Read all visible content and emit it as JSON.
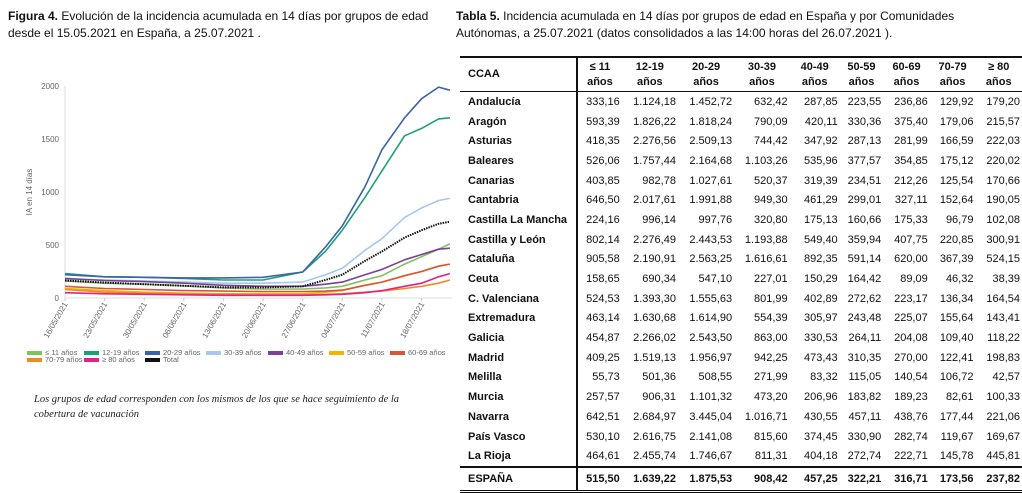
{
  "figure": {
    "label": "Figura 4.",
    "title": "Evolución de la incidencia acumulada en 14 días por grupos de edad desde el 15.05.2021 en España, a 25.07.2021 .",
    "note": "Los grupos de edad corresponden con los mismos de los que se hace seguimiento de la cobertura de vacunación"
  },
  "chart_data": {
    "type": "line",
    "title": "Evolución de la incidencia acumulada en 14 días por grupos de edad",
    "xlabel": "",
    "ylabel": "IA en 14 días",
    "ylim": [
      0,
      2000
    ],
    "yticks": [
      "0",
      "500",
      "1000",
      "1500",
      "2000"
    ],
    "xticks": [
      "16/05/2021",
      "23/05/2021",
      "30/05/2021",
      "06/06/2021",
      "13/06/2021",
      "20/06/2021",
      "27/06/2021",
      "04/07/2021",
      "11/07/2021",
      "18/07/2021"
    ],
    "x_days_since_16_05": [
      0,
      7,
      14,
      21,
      28,
      35,
      42,
      46,
      49,
      53,
      56,
      60,
      63,
      66,
      68
    ],
    "legend_position": "bottom",
    "series": [
      {
        "name": "≤ 11 años",
        "color": "#7dc35b",
        "values": [
          160,
          140,
          130,
          115,
          95,
          85,
          85,
          95,
          110,
          170,
          210,
          320,
          390,
          460,
          510
        ]
      },
      {
        "name": "12-19 años",
        "color": "#1ba07a",
        "values": [
          230,
          200,
          195,
          185,
          170,
          170,
          245,
          440,
          640,
          950,
          1200,
          1530,
          1600,
          1690,
          1700
        ]
      },
      {
        "name": "20-29 años",
        "color": "#3b63a8",
        "values": [
          220,
          200,
          195,
          190,
          190,
          195,
          245,
          480,
          680,
          1050,
          1400,
          1700,
          1880,
          1990,
          1960
        ]
      },
      {
        "name": "30-39 años",
        "color": "#a6c8f0",
        "values": [
          180,
          170,
          160,
          150,
          140,
          140,
          150,
          220,
          280,
          450,
          560,
          760,
          850,
          920,
          940
        ]
      },
      {
        "name": "40-49 años",
        "color": "#7b3f98",
        "values": [
          185,
          165,
          155,
          140,
          120,
          110,
          110,
          130,
          150,
          220,
          270,
          360,
          410,
          460,
          470
        ]
      },
      {
        "name": "50-59 años",
        "color": "#f2b400",
        "values": [
          90,
          70,
          55,
          45,
          40,
          40,
          40,
          55,
          70,
          120,
          150,
          210,
          250,
          300,
          320
        ]
      },
      {
        "name": "60-69 años",
        "color": "#d8553b",
        "values": [
          110,
          90,
          80,
          70,
          65,
          60,
          60,
          65,
          75,
          120,
          150,
          210,
          250,
          300,
          320
        ]
      },
      {
        "name": "70-79 años",
        "color": "#f08a24",
        "values": [
          80,
          55,
          45,
          40,
          35,
          30,
          30,
          35,
          40,
          55,
          65,
          90,
          110,
          140,
          170
        ]
      },
      {
        "name": "≥ 80 años",
        "color": "#e0218a",
        "values": [
          50,
          40,
          35,
          30,
          25,
          25,
          25,
          30,
          35,
          50,
          70,
          110,
          140,
          200,
          230
        ]
      },
      {
        "name": "Total",
        "color": "#111111",
        "dotted": true,
        "values": [
          165,
          145,
          130,
          115,
          100,
          100,
          110,
          170,
          220,
          350,
          440,
          570,
          640,
          700,
          720
        ]
      }
    ]
  },
  "table": {
    "label": "Tabla 5.",
    "title": "Incidencia acumulada en 14 días por grupos de edad en España y por Comunidades Autónomas, a 25.07.2021  (datos consolidados a las 14:00 horas del 26.07.2021 ).",
    "headers": [
      "CCAA",
      "≤ 11",
      "12-19",
      "20-29",
      "30-39",
      "40-49",
      "50-59",
      "60-69",
      "70-79",
      "≥ 80"
    ],
    "subheader": "años",
    "rows": [
      [
        "Andalucía",
        "333,16",
        "1.124,18",
        "1.452,72",
        "632,42",
        "287,85",
        "223,55",
        "236,86",
        "129,92",
        "179,20"
      ],
      [
        "Aragón",
        "593,39",
        "1.826,22",
        "1.818,24",
        "790,09",
        "420,11",
        "330,36",
        "375,40",
        "179,06",
        "215,57"
      ],
      [
        "Asturias",
        "418,35",
        "2.276,56",
        "2.509,13",
        "744,42",
        "347,92",
        "287,13",
        "281,99",
        "166,59",
        "222,03"
      ],
      [
        "Baleares",
        "526,06",
        "1.757,44",
        "2.164,68",
        "1.103,26",
        "535,96",
        "377,57",
        "354,85",
        "175,12",
        "220,02"
      ],
      [
        "Canarias",
        "403,85",
        "982,78",
        "1.027,61",
        "520,37",
        "319,39",
        "234,51",
        "212,26",
        "125,54",
        "170,66"
      ],
      [
        "Cantabria",
        "646,50",
        "2.017,61",
        "1.991,88",
        "949,30",
        "461,29",
        "299,01",
        "327,11",
        "152,64",
        "190,05"
      ],
      [
        "Castilla La Mancha",
        "224,16",
        "996,14",
        "997,76",
        "320,80",
        "175,13",
        "160,66",
        "175,33",
        "96,79",
        "102,08"
      ],
      [
        "Castilla y León",
        "802,14",
        "2.276,49",
        "2.443,53",
        "1.193,88",
        "549,40",
        "359,94",
        "407,75",
        "220,85",
        "300,91"
      ],
      [
        "Cataluña",
        "905,58",
        "2.190,91",
        "2.563,25",
        "1.616,61",
        "892,35",
        "591,14",
        "620,00",
        "367,39",
        "524,15"
      ],
      [
        "Ceuta",
        "158,65",
        "690,34",
        "547,10",
        "227,01",
        "150,29",
        "164,42",
        "89,09",
        "46,32",
        "38,39"
      ],
      [
        "C. Valenciana",
        "524,53",
        "1.393,30",
        "1.555,63",
        "801,99",
        "402,89",
        "272,62",
        "223,17",
        "136,34",
        "164,54"
      ],
      [
        "Extremadura",
        "463,14",
        "1.630,68",
        "1.614,90",
        "554,39",
        "305,97",
        "243,48",
        "225,07",
        "155,64",
        "143,41"
      ],
      [
        "Galicia",
        "454,87",
        "2.266,02",
        "2.543,50",
        "863,00",
        "330,53",
        "264,11",
        "204,08",
        "109,40",
        "118,22"
      ],
      [
        "Madrid",
        "409,25",
        "1.519,13",
        "1.956,97",
        "942,25",
        "473,43",
        "310,35",
        "270,00",
        "122,41",
        "198,83"
      ],
      [
        "Melilla",
        "55,73",
        "501,36",
        "508,55",
        "271,99",
        "83,32",
        "115,05",
        "140,54",
        "106,72",
        "42,57"
      ],
      [
        "Murcia",
        "257,57",
        "906,31",
        "1.101,32",
        "473,20",
        "206,96",
        "183,82",
        "189,23",
        "82,61",
        "100,33"
      ],
      [
        "Navarra",
        "642,51",
        "2.684,97",
        "3.445,04",
        "1.016,71",
        "430,55",
        "457,11",
        "438,76",
        "177,44",
        "221,06"
      ],
      [
        "País Vasco",
        "530,10",
        "2.616,75",
        "2.141,08",
        "815,60",
        "374,45",
        "330,90",
        "282,74",
        "119,67",
        "169,67"
      ],
      [
        "La Rioja",
        "464,61",
        "2.455,74",
        "1.746,67",
        "811,31",
        "404,18",
        "272,74",
        "222,71",
        "145,78",
        "445,81"
      ]
    ],
    "total": [
      "ESPAÑA",
      "515,50",
      "1.639,22",
      "1.875,53",
      "908,42",
      "457,25",
      "322,21",
      "316,71",
      "173,56",
      "237,82"
    ]
  }
}
